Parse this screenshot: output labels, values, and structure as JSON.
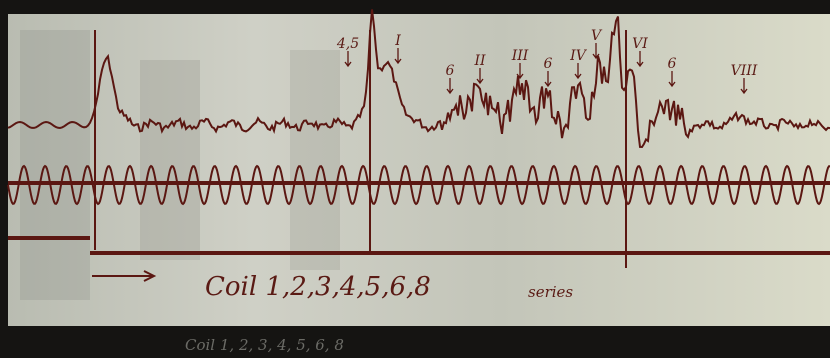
{
  "annotations": [
    "4,5",
    "I",
    "6",
    "II",
    "III",
    "6",
    "IV",
    "V",
    "VI",
    "6",
    "VIII"
  ],
  "caption": {
    "text": "Coil 1,2,3,4,5,6,8",
    "suffix": "series"
  },
  "footer": "Coil 1, 2, 3, 4, 5, 6, 8"
}
